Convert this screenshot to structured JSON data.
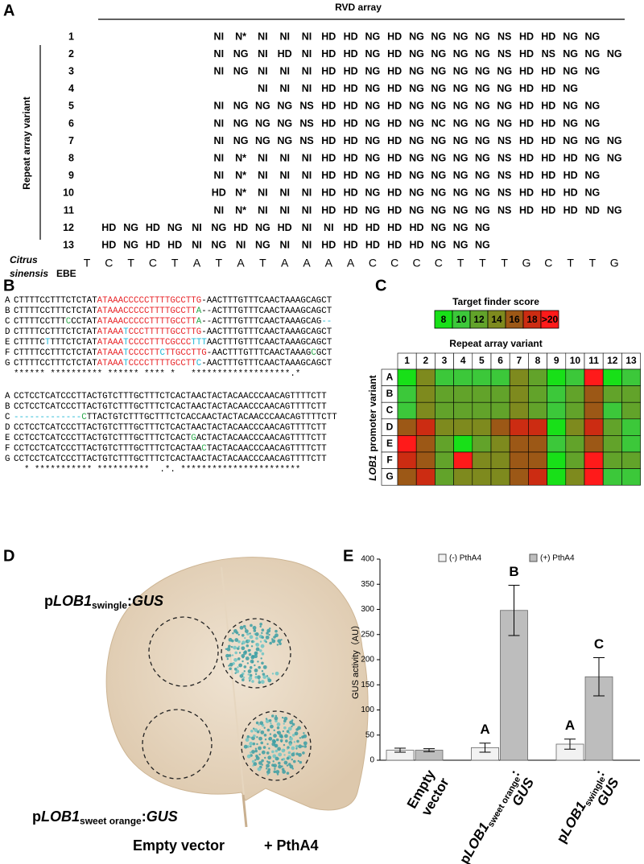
{
  "A": {
    "label": "A",
    "header": "RVD array",
    "axis_title": "Repeat array variant",
    "rows": [
      {
        "label": "1",
        "rvds": [
          null,
          null,
          null,
          null,
          null,
          null,
          "NI",
          "N*",
          "NI",
          "NI",
          "NI",
          "HD",
          "HD",
          "NG",
          "HD",
          "NG",
          "NG",
          "NG",
          "NG",
          "NS",
          "HD",
          "HD",
          "NG",
          "NG",
          null
        ]
      },
      {
        "label": "2",
        "rvds": [
          null,
          null,
          null,
          null,
          null,
          null,
          "NI",
          "NG",
          "NI",
          "HD",
          "NI",
          "HD",
          "HD",
          "NG",
          "HD",
          "NG",
          "NG",
          "NG",
          "NG",
          "NS",
          "HD",
          "NS",
          "NG",
          "NG",
          "NG"
        ]
      },
      {
        "label": "3",
        "rvds": [
          null,
          null,
          null,
          null,
          null,
          null,
          "NI",
          "NG",
          "NI",
          "NI",
          "NI",
          "HD",
          "HD",
          "NG",
          "HD",
          "NG",
          "NG",
          "NG",
          "NG",
          "NG",
          "HD",
          "HD",
          "NG",
          "NG",
          null
        ]
      },
      {
        "label": "4",
        "rvds": [
          null,
          null,
          null,
          null,
          null,
          null,
          null,
          null,
          "NI",
          "NI",
          "NI",
          "HD",
          "HD",
          "NG",
          "HD",
          "NG",
          "NG",
          "NG",
          "NG",
          "NG",
          "HD",
          "HD",
          "NG",
          null,
          null
        ]
      },
      {
        "label": "5",
        "rvds": [
          null,
          null,
          null,
          null,
          null,
          null,
          "NI",
          "NG",
          "NG",
          "NG",
          "NS",
          "HD",
          "HD",
          "NG",
          "HD",
          "NG",
          "NG",
          "NG",
          "NG",
          "NG",
          "HD",
          "HD",
          "NG",
          "NG",
          null
        ]
      },
      {
        "label": "6",
        "rvds": [
          null,
          null,
          null,
          null,
          null,
          null,
          "NI",
          "NG",
          "NG",
          "NG",
          "NS",
          "HD",
          "HD",
          "NG",
          "HD",
          "NG",
          "NC",
          "NG",
          "NG",
          "NG",
          "HD",
          "HD",
          "NG",
          "NG",
          null
        ]
      },
      {
        "label": "7",
        "rvds": [
          null,
          null,
          null,
          null,
          null,
          null,
          "NI",
          "NG",
          "NG",
          "NG",
          "NS",
          "HD",
          "HD",
          "NG",
          "HD",
          "NG",
          "NG",
          "NG",
          "NG",
          "NS",
          "HD",
          "HD",
          "NG",
          "NG",
          "NG"
        ]
      },
      {
        "label": "8",
        "rvds": [
          null,
          null,
          null,
          null,
          null,
          null,
          "NI",
          "N*",
          "NI",
          "NI",
          "NI",
          "HD",
          "HD",
          "NG",
          "HD",
          "NG",
          "NG",
          "NG",
          "NG",
          "NS",
          "HD",
          "HD",
          "HD",
          "NG",
          "NG"
        ]
      },
      {
        "label": "9",
        "rvds": [
          null,
          null,
          null,
          null,
          null,
          null,
          "NI",
          "N*",
          "NI",
          "NI",
          "NI",
          "HD",
          "HD",
          "NG",
          "HD",
          "NG",
          "NG",
          "NG",
          "NG",
          "NS",
          "HD",
          "HD",
          "HD",
          "NG",
          null
        ]
      },
      {
        "label": "10",
        "rvds": [
          null,
          null,
          null,
          null,
          null,
          null,
          "HD",
          "N*",
          "NI",
          "NI",
          "NI",
          "HD",
          "HD",
          "NG",
          "HD",
          "NG",
          "NG",
          "NG",
          "NG",
          "NS",
          "HD",
          "HD",
          "HD",
          "NG",
          null
        ]
      },
      {
        "label": "11",
        "rvds": [
          null,
          null,
          null,
          null,
          null,
          null,
          "NI",
          "N*",
          "NI",
          "NI",
          "NI",
          "HD",
          "HD",
          "NG",
          "HD",
          "NG",
          "NG",
          "NG",
          "NG",
          "NS",
          "HD",
          "HD",
          "HD",
          "ND",
          "NG"
        ]
      },
      {
        "label": "12",
        "rvds": [
          null,
          "HD",
          "NG",
          "HD",
          "NG",
          "NI",
          "NG",
          "HD",
          "NG",
          "HD",
          "NI",
          "NI",
          "HD",
          "HD",
          "HD",
          "HD",
          "NG",
          "NG",
          "NG",
          null,
          null,
          null,
          null,
          null,
          null
        ]
      },
      {
        "label": "13",
        "rvds": [
          null,
          "HD",
          "NG",
          "HD",
          "HD",
          "NI",
          "NG",
          "NI",
          "NG",
          "NI",
          "NI",
          "HD",
          "HD",
          "HD",
          "HD",
          "HD",
          "NG",
          "NG",
          "NG",
          null,
          null,
          null,
          null,
          null,
          null
        ]
      }
    ],
    "ebe": {
      "species": [
        "Citrus",
        "sinensis"
      ],
      "tag": "EBE",
      "bases": [
        "T",
        "C",
        "T",
        "C",
        "T",
        "A",
        "T",
        "A",
        "T",
        "A",
        "A",
        "A",
        "A",
        "C",
        "C",
        "C",
        "C",
        "T",
        "T",
        "T",
        "G",
        "C",
        "T",
        "T",
        "G"
      ]
    }
  },
  "B": {
    "label": "B",
    "blocks": [
      {
        "rows": [
          {
            "label": "A",
            "segments": [
              {
                "text": "CTTTTCCTTTCTCTAT"
              },
              {
                "text": "ATAAACCCCCTTTTGCCTTG",
                "color": "#e8262a"
              },
              {
                "text": "-AACTTTGTTTCAACTAAAGCAGCT"
              }
            ]
          },
          {
            "label": "B",
            "segments": [
              {
                "text": "CTTTTCCTTTCTCTAT"
              },
              {
                "text": "ATAAACCCCCTTTTGCCTT",
                "color": "#e8262a"
              },
              {
                "text": "A",
                "color": "#2aa84a"
              },
              {
                "text": "--ACTTTGTTTCAACTAAAGCAGCT"
              }
            ]
          },
          {
            "label": "C",
            "segments": [
              {
                "text": "CTTTTCCTTT"
              },
              {
                "text": "C",
                "color": "#2aa84a"
              },
              {
                "text": "CCTAT"
              },
              {
                "text": "ATAAACCCCCTTTTGCCTT",
                "color": "#e8262a"
              },
              {
                "text": "A",
                "color": "#2aa84a"
              },
              {
                "text": "--ACTTTGTTTCAACTAAAGCAG"
              },
              {
                "text": "--",
                "color": "#1fb7d6"
              }
            ]
          },
          {
            "label": "D",
            "segments": [
              {
                "text": "CTTTTCCTTTCTCTAT"
              },
              {
                "text": "ATAAA",
                "color": "#e8262a"
              },
              {
                "text": "T",
                "color": "#1fb7d6"
              },
              {
                "text": "CCCTTTTTGCCTTG",
                "color": "#e8262a"
              },
              {
                "text": "-AACTTTGTTTCAACTAAAGCAGCT"
              }
            ]
          },
          {
            "label": "E",
            "segments": [
              {
                "text": "CTTTTC"
              },
              {
                "text": "T",
                "color": "#1fb7d6"
              },
              {
                "text": "TTTCTCTAT"
              },
              {
                "text": "ATAAA",
                "color": "#e8262a"
              },
              {
                "text": "T",
                "color": "#1fb7d6"
              },
              {
                "text": "CCCCTTTCGCCC",
                "color": "#e8262a"
              },
              {
                "text": "TTT",
                "color": "#1fb7d6"
              },
              {
                "text": "AACTTTGTTTCAACTAAAGCAGCT"
              }
            ]
          },
          {
            "label": "F",
            "segments": [
              {
                "text": "CTTTTCCTTTCTCTAT"
              },
              {
                "text": "ATAAA",
                "color": "#e8262a"
              },
              {
                "text": "T",
                "color": "#1fb7d6"
              },
              {
                "text": "CCCCTT",
                "color": "#e8262a"
              },
              {
                "text": "C",
                "color": "#1fb7d6"
              },
              {
                "text": "TTGCCTTG",
                "color": "#e8262a"
              },
              {
                "text": "-AACTTTGTTTCAACTAAAG"
              },
              {
                "text": "C",
                "color": "#2aa84a"
              },
              {
                "text": "GCT"
              }
            ]
          },
          {
            "label": "G",
            "segments": [
              {
                "text": "CTTTTCCTTTCTCTAT"
              },
              {
                "text": "ATAAA",
                "color": "#e8262a"
              },
              {
                "text": "T",
                "color": "#1fb7d6"
              },
              {
                "text": "CCCCTTTTGCCTT",
                "color": "#e8262a"
              },
              {
                "text": "C",
                "color": "#1fb7d6"
              },
              {
                "text": "-AACTTTGTTTCAACTAAAGCAGCT"
              }
            ]
          }
        ],
        "consensus": "****** ********** ****** **** *   *******************.*"
      },
      {
        "rows": [
          {
            "label": "A",
            "segments": [
              {
                "text": "CCTCCTCATCCCTTACTGTCTTTGCTTTCTCACTAACTACTACAACCCAACAGTTTTCTT"
              }
            ]
          },
          {
            "label": "B",
            "segments": [
              {
                "text": "CCTCCTCATCCCTTACTGTCTTTGCTTTCTCACTAACTACTACAACCCAACAGTTTTCTT"
              }
            ]
          },
          {
            "label": "C",
            "segments": [
              {
                "text": "-------------",
                "color": "#1fb7d6"
              },
              {
                "text": "C",
                "color": "#2aa84a"
              },
              {
                "text": "TTACTGTCTTTGCTTTCTCACCAACTACTACAACCCAACAGTTTTCTT"
              }
            ]
          },
          {
            "label": "D",
            "segments": [
              {
                "text": "CCTCCTCATCCCTTACTGTCTTTGCTTTCTCACTAACTACTACAACCCAACAGTTTTCTT"
              }
            ]
          },
          {
            "label": "E",
            "segments": [
              {
                "text": "CCTCCTCATCCCTTACTGTCTTTGCTTTCTCACT"
              },
              {
                "text": "G",
                "color": "#2aa84a"
              },
              {
                "text": "ACTACTACAACCCAACAGTTTTCTT"
              }
            ]
          },
          {
            "label": "F",
            "segments": [
              {
                "text": "CCTCCTCATCCCTTACTGTCTTTGCTTTCTCACTAA"
              },
              {
                "text": "C",
                "color": "#2aa84a"
              },
              {
                "text": "TACTACAACCCAACAGTTTTCTT"
              }
            ]
          },
          {
            "label": "G",
            "segments": [
              {
                "text": "CCTCCTCATCCCTTACTGTCTTTGCTTTCTCACTAACTACTACAACCCAACAGTTTTCTT"
              }
            ]
          }
        ],
        "consensus": "  * *********** **********  .*. ***********************"
      }
    ]
  },
  "C": {
    "label": "C",
    "legend_title": "Target finder score",
    "legend": [
      8,
      10,
      12,
      14,
      16,
      18,
      {
        "value": 20,
        "label": ">20"
      }
    ],
    "colors": [
      "#18e018",
      "#3cc83a",
      "#62a32a",
      "#7e8a1e",
      "#9c5816",
      "#cc2c12",
      "#ff1a1a"
    ],
    "x_title": "Repeat array variant",
    "y_title": [
      "LOB1",
      "promoter variant"
    ],
    "columns": [
      "1",
      "2",
      "3",
      "4",
      "5",
      "6",
      "7",
      "8",
      "9",
      "10",
      "11",
      "12",
      "13"
    ],
    "rows": [
      "A",
      "B",
      "C",
      "D",
      "E",
      "F",
      "G"
    ],
    "scores": [
      [
        8,
        14,
        10,
        10,
        10,
        10,
        14,
        12,
        8,
        10,
        20,
        8,
        10
      ],
      [
        10,
        14,
        12,
        12,
        12,
        12,
        14,
        12,
        10,
        12,
        16,
        12,
        12
      ],
      [
        10,
        14,
        12,
        12,
        12,
        12,
        14,
        12,
        10,
        12,
        16,
        10,
        12
      ],
      [
        16,
        18,
        14,
        14,
        14,
        16,
        18,
        18,
        8,
        14,
        18,
        12,
        10
      ],
      [
        20,
        16,
        12,
        8,
        12,
        14,
        16,
        16,
        10,
        12,
        16,
        12,
        10
      ],
      [
        18,
        16,
        12,
        20,
        14,
        14,
        16,
        16,
        8,
        12,
        20,
        12,
        12
      ],
      [
        16,
        18,
        12,
        14,
        14,
        14,
        16,
        18,
        8,
        14,
        20,
        10,
        10
      ]
    ]
  },
  "D": {
    "label": "D",
    "construct_top": [
      "p",
      "LOB1",
      "swingle",
      ":",
      "GUS"
    ],
    "construct_bottom": [
      "p",
      "LOB1",
      "sweet orange",
      ":",
      "GUS"
    ],
    "treatments": [
      "Empty vector",
      "+ PthA4"
    ]
  },
  "chart_data": {
    "type": "bar",
    "panel_label": "E",
    "ylabel": "GUS activity（AU）",
    "categories": [
      [
        "Empty",
        "vector"
      ],
      [
        "p",
        "LOB1",
        "sweet orange",
        ":",
        "GUS"
      ],
      [
        "p",
        "LOB1",
        "swingle",
        ":",
        "GUS"
      ]
    ],
    "series": [
      {
        "name": "(-) PthA4",
        "color": "#f2f2f2",
        "values": [
          20,
          25,
          32
        ],
        "errors": [
          4,
          9,
          10
        ],
        "letters": [
          null,
          "A",
          "A"
        ]
      },
      {
        "name": "(+) PthA4",
        "color": "#bdbdbd",
        "values": [
          20,
          298,
          166
        ],
        "errors": [
          3,
          50,
          38
        ],
        "letters": [
          null,
          "B",
          "C"
        ]
      }
    ],
    "ylim": [
      0,
      400
    ],
    "yticks": [
      0,
      50,
      100,
      150,
      200,
      250,
      300,
      350,
      400
    ]
  }
}
